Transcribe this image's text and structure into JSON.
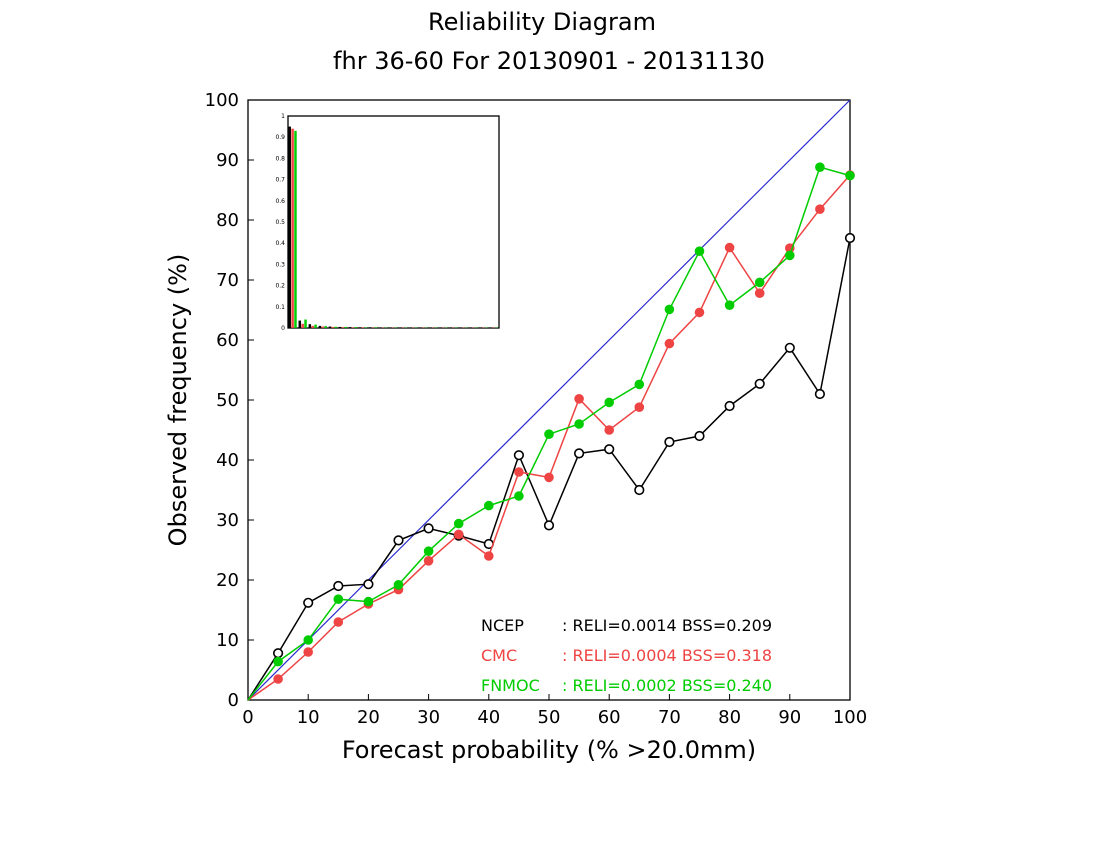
{
  "chart_data": {
    "type": "line",
    "title": "Reliability Diagram",
    "subtitle": "fhr 36-60 For 20130901 - 20131130",
    "xlabel": "Forecast probability (% >20.0mm)",
    "ylabel": "Observed frequency (%)",
    "xlim": [
      0,
      100
    ],
    "ylim": [
      0,
      100
    ],
    "xticks": [
      "0",
      "10",
      "20",
      "30",
      "40",
      "50",
      "60",
      "70",
      "80",
      "90",
      "100"
    ],
    "yticks": [
      "0",
      "10",
      "20",
      "30",
      "40",
      "50",
      "60",
      "70",
      "80",
      "90",
      "100"
    ],
    "grid": false,
    "diagonal_color": "#2a2ad0",
    "series": [
      {
        "name": "NCEP",
        "color": "#000000",
        "marker": "open-circle",
        "stats": ": RELI=0.0014 BSS=0.209",
        "x": [
          0,
          5,
          10,
          15,
          20,
          25,
          30,
          35,
          40,
          45,
          50,
          55,
          60,
          65,
          70,
          75,
          80,
          85,
          90,
          95,
          100
        ],
        "y": [
          0,
          7.8,
          16.2,
          19.0,
          19.3,
          26.6,
          28.6,
          27.4,
          26.0,
          40.8,
          29.1,
          41.1,
          41.8,
          35.0,
          43.0,
          44.0,
          49.0,
          52.7,
          58.7,
          51.0,
          77.0
        ]
      },
      {
        "name": "CMC",
        "color": "#ee4444",
        "marker": "filled-circle",
        "stats": ": RELI=0.0004 BSS=0.318",
        "x": [
          0,
          5,
          10,
          15,
          20,
          25,
          30,
          35,
          40,
          45,
          50,
          55,
          60,
          65,
          70,
          75,
          80,
          85,
          90,
          95,
          100
        ],
        "y": [
          0,
          3.5,
          8.0,
          13.0,
          16.0,
          18.4,
          23.2,
          27.6,
          24.0,
          38.0,
          37.1,
          50.2,
          45.0,
          48.8,
          59.4,
          64.6,
          75.4,
          67.8,
          75.3,
          81.8,
          87.5
        ]
      },
      {
        "name": "FNMOC",
        "color": "#00cc00",
        "marker": "filled-circle",
        "stats": ": RELI=0.0002 BSS=0.240",
        "x": [
          0,
          5,
          10,
          15,
          20,
          25,
          30,
          35,
          40,
          45,
          50,
          55,
          60,
          65,
          70,
          75,
          80,
          85,
          90,
          95,
          100
        ],
        "y": [
          0,
          6.4,
          10.0,
          16.8,
          16.4,
          19.2,
          24.8,
          29.4,
          32.4,
          34.0,
          44.3,
          46.0,
          49.6,
          52.6,
          65.1,
          74.8,
          65.8,
          69.6,
          74.1,
          88.8,
          87.4
        ]
      }
    ],
    "inset_histogram": {
      "ylim": [
        0,
        1
      ],
      "yticks": [
        "0",
        "0.1",
        "0.2",
        "0.3",
        "0.4",
        "0.5",
        "0.6",
        "0.7",
        "0.8",
        "0.9",
        "1"
      ],
      "bins": 21,
      "series": [
        {
          "name": "NCEP",
          "color": "#000000",
          "values": [
            0.95,
            0.035,
            0.018,
            0.01,
            0.007,
            0.005,
            0.004,
            0.003,
            0.003,
            0.002,
            0.002,
            0.002,
            0.002,
            0.002,
            0.002,
            0.002,
            0.002,
            0.002,
            0.002,
            0.002,
            0.002
          ]
        },
        {
          "name": "CMC",
          "color": "#ee4444",
          "values": [
            0.94,
            0.02,
            0.01,
            0.007,
            0.005,
            0.004,
            0.003,
            0.003,
            0.002,
            0.002,
            0.002,
            0.002,
            0.002,
            0.002,
            0.002,
            0.002,
            0.002,
            0.002,
            0.002,
            0.002,
            0.002
          ]
        },
        {
          "name": "FNMOC",
          "color": "#00cc00",
          "values": [
            0.93,
            0.04,
            0.016,
            0.009,
            0.006,
            0.005,
            0.004,
            0.003,
            0.003,
            0.002,
            0.002,
            0.002,
            0.002,
            0.002,
            0.002,
            0.002,
            0.002,
            0.002,
            0.002,
            0.002,
            0.002
          ]
        }
      ]
    }
  }
}
